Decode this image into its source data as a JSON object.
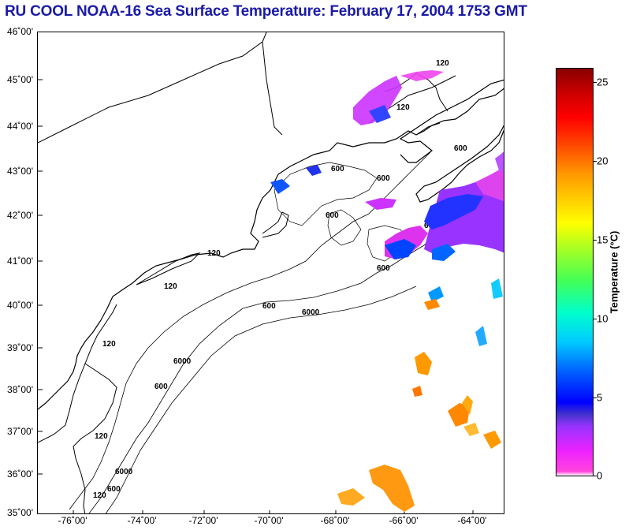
{
  "title": "RU COOL  NOAA-16  Sea Surface Temperature:  February 17, 2004 1753 GMT",
  "lat_labels": [
    "46˚00'",
    "45˚00'",
    "44˚00'",
    "43˚00'",
    "42˚00'",
    "41˚00'",
    "40˚00'",
    "39˚00'",
    "38˚00'",
    "37˚00'",
    "36˚00'",
    "35˚00'"
  ],
  "lon_labels": [
    "-76˚00'",
    "-74˚00'",
    "-72˚00'",
    "-70˚00'",
    "-68˚00'",
    "-66˚00'",
    "-64˚00'"
  ],
  "colorbar": {
    "label": "Temperature (°C)",
    "ticks": [
      "25",
      "20",
      "15",
      "10",
      "5",
      "0"
    ],
    "range": [
      0,
      26
    ]
  },
  "contour_labels": [
    "120",
    "120",
    "600",
    "600",
    "600",
    "600",
    "6000",
    "120",
    "120",
    "600",
    "600",
    "6000",
    "120",
    "600",
    "6000",
    "120",
    "120",
    "600",
    "6000",
    "600"
  ],
  "colors": {
    "title": "#1a1aa8",
    "coastline": "#000000",
    "cold": "#dd22ff",
    "cool": "#0033ff",
    "warm": "#ff8800"
  }
}
